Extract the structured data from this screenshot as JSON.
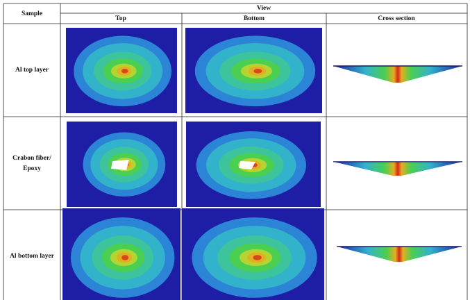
{
  "table": {
    "header": {
      "sample": "Sample",
      "view": "View",
      "columns": [
        "Top",
        "Bottom",
        "Cross section"
      ]
    },
    "rows": [
      {
        "sample": [
          "Al top layer"
        ]
      },
      {
        "sample": [
          "Crabon fiber/",
          "Epoxy"
        ]
      },
      {
        "sample": [
          "Al bottom layer"
        ]
      }
    ]
  }
}
